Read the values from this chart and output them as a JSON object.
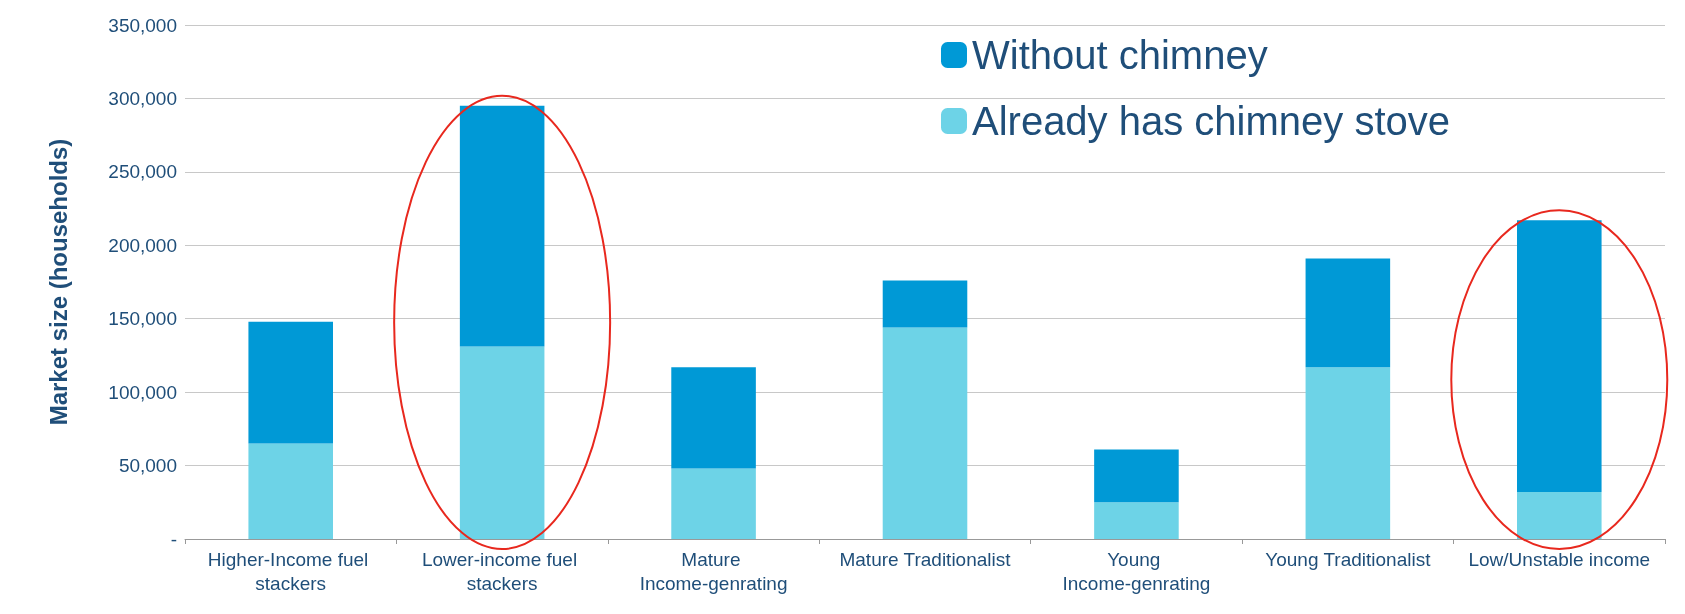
{
  "chart_data": {
    "type": "bar",
    "stacked": true,
    "ylabel": "Market size (households)",
    "categories": [
      "Higher-Income fuel stackers",
      "Lower-income fuel stackers",
      "Mature Income-genrating",
      "Mature Traditionalist",
      "Young Income-genrating",
      "Young Traditionalist",
      "Low/Unstable income"
    ],
    "series": [
      {
        "name": "Already has chimney stove",
        "color": "#6dd3e7",
        "values": [
          65000,
          131000,
          48000,
          144000,
          25000,
          117000,
          32000
        ]
      },
      {
        "name": "Without chimney",
        "color": "#0099d6",
        "values": [
          83000,
          164000,
          69000,
          32000,
          36000,
          74000,
          185000
        ]
      }
    ],
    "ylim": [
      0,
      350000
    ],
    "yticks": [
      {
        "value": 0,
        "label": "-"
      },
      {
        "value": 50000,
        "label": "50,000"
      },
      {
        "value": 100000,
        "label": "100,000"
      },
      {
        "value": 150000,
        "label": "150,000"
      },
      {
        "value": 200000,
        "label": "200,000"
      },
      {
        "value": 250000,
        "label": "250,000"
      },
      {
        "value": 300000,
        "label": "300,000"
      },
      {
        "value": 350000,
        "label": "350,000"
      }
    ],
    "grid": "y",
    "legend": "top right"
  }
}
